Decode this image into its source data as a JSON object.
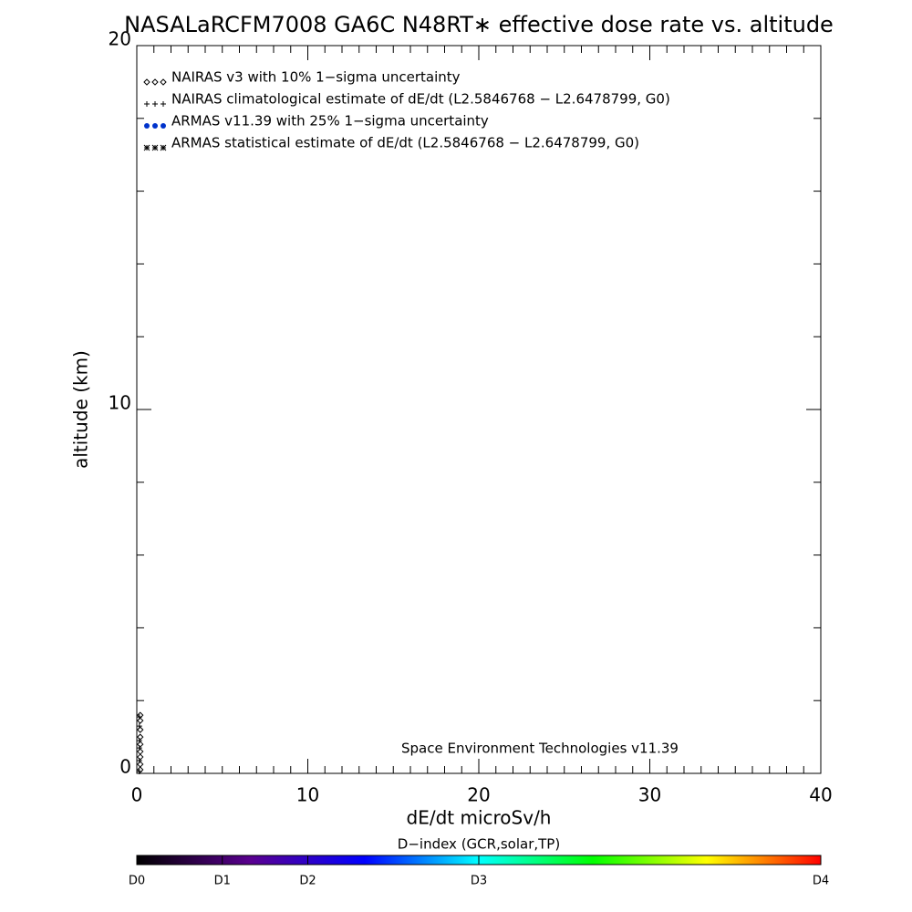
{
  "chart_data": {
    "type": "scatter",
    "title": "NASALaRCFM7008  GA6C N48RT∗ effective dose rate vs. altitude",
    "x_label": "dE/dt microSv/h",
    "y_label": "altitude (km)",
    "xlim": [
      0,
      40
    ],
    "xticks": [
      0,
      10,
      20,
      30,
      40
    ],
    "x_minor_step": 1,
    "ylim": [
      0,
      20
    ],
    "yticks": [
      0,
      10,
      20
    ],
    "y_minor_step": 2,
    "legend": "upper left",
    "annotation": "Space Environment Technologies v11.39",
    "series": [
      {
        "name": "NAIRAS v3 with 10% 1−sigma uncertainty",
        "marker": "diamond",
        "color": "#000000",
        "x": [
          0.2,
          0.2,
          0.2,
          0.2,
          0.2,
          0.2,
          0.2,
          0.2,
          0.2
        ],
        "values": [
          1.6,
          1.45,
          1.2,
          1.0,
          0.8,
          0.6,
          0.45,
          0.25,
          0.1
        ]
      },
      {
        "name": "NAIRAS climatological estimate of dE/dt (L2.5846768 − L2.6478799, G0)",
        "marker": "plus",
        "color": "#000000",
        "x": [
          0.15,
          0.15,
          0.15,
          0.15,
          0.15,
          0.15
        ],
        "values": [
          1.55,
          1.3,
          0.9,
          0.7,
          0.35,
          0.05
        ]
      },
      {
        "name": "ARMAS v11.39 with 25% 1−sigma uncertainty",
        "marker": "circle",
        "color": "#0033cc",
        "x": [],
        "values": []
      },
      {
        "name": "ARMAS statistical estimate of dE/dt (L2.5846768 − L2.6478799, G0)",
        "marker": "asterisk",
        "color": "#000000",
        "x": [],
        "values": []
      }
    ],
    "colorbar": {
      "label": "D−index (GCR,solar,TP)",
      "lim": [
        0,
        1
      ],
      "colors": [
        "#000000",
        "#5a0090",
        "#0000ff",
        "#00ffff",
        "#00ff00",
        "#ffff00",
        "#ff0000"
      ],
      "ticks": [
        {
          "value": 0,
          "label": "D0"
        },
        {
          "value": 0.125,
          "label": "D1"
        },
        {
          "value": 0.25,
          "label": "D2"
        },
        {
          "value": 0.5,
          "label": "D3"
        },
        {
          "value": 1,
          "label": "D4"
        }
      ]
    }
  }
}
